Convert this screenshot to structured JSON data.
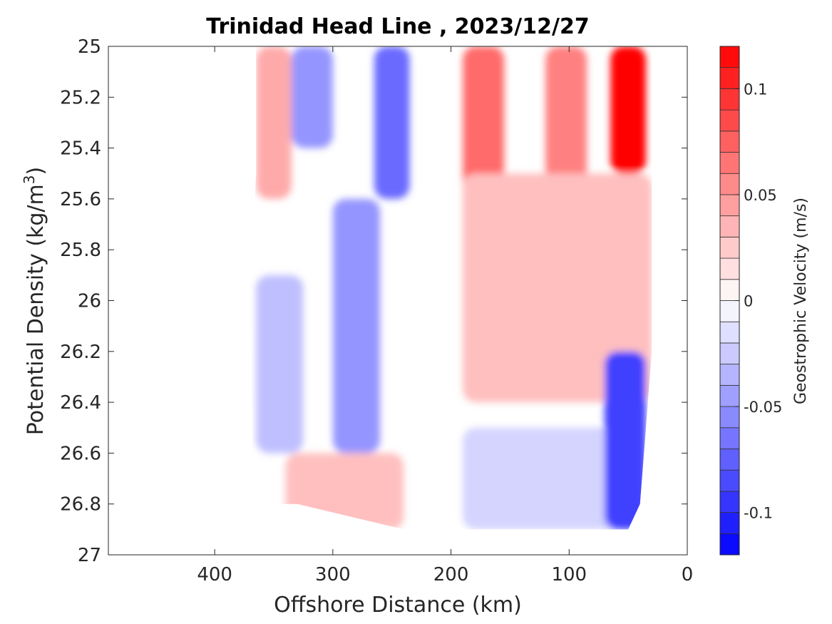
{
  "chart_data": {
    "type": "heatmap",
    "subtype": "filled-contour",
    "title": "Trinidad Head Line , 2023/12/27",
    "xlabel": "Offshore Distance (km)",
    "ylabel_main": "Potential Density (kg/m",
    "ylabel_sup": "3",
    "ylabel_tail": ")",
    "xlim": [
      490,
      0
    ],
    "x_reversed": true,
    "ylim": [
      25,
      27
    ],
    "y_reversed": true,
    "x_ticks": [
      400,
      300,
      200,
      100,
      0
    ],
    "x_tick_labels": [
      "400",
      "300",
      "200",
      "100",
      "0"
    ],
    "y_ticks": [
      25,
      25.2,
      25.4,
      25.6,
      25.8,
      26,
      26.2,
      26.4,
      26.6,
      26.8,
      27
    ],
    "y_tick_labels": [
      "25",
      "25.2",
      "25.4",
      "25.6",
      "25.8",
      "26",
      "26.2",
      "26.4",
      "26.6",
      "26.8",
      "27"
    ],
    "colorbar": {
      "label": "Geostrophic Velocity (m/s)",
      "range": [
        -0.12,
        0.12
      ],
      "tick_values": [
        0.1,
        0.05,
        0,
        -0.05,
        -0.1
      ],
      "tick_labels": [
        "0.1",
        "0.05",
        "0",
        "-0.05",
        "-0.1"
      ],
      "levels": [
        -0.12,
        -0.11,
        -0.1,
        -0.09,
        -0.08,
        -0.07,
        -0.06,
        -0.05,
        -0.04,
        -0.03,
        -0.02,
        -0.01,
        0,
        0.01,
        0.02,
        0.03,
        0.04,
        0.05,
        0.06,
        0.07,
        0.08,
        0.09,
        0.1,
        0.11,
        0.12
      ],
      "colormap": "blue-white-red",
      "negative_color": "#0000ff",
      "zero_color": "#ffffff",
      "positive_color": "#ff0000"
    },
    "features": [
      {
        "x": [
          365,
          335
        ],
        "y": [
          25,
          25.6
        ],
        "v": 0.04
      },
      {
        "x": [
          335,
          300
        ],
        "y": [
          25,
          25.4
        ],
        "v": -0.05
      },
      {
        "x": [
          265,
          235
        ],
        "y": [
          25,
          25.6
        ],
        "v": -0.07
      },
      {
        "x": [
          300,
          260
        ],
        "y": [
          25.6,
          26.6
        ],
        "v": -0.05
      },
      {
        "x": [
          365,
          325
        ],
        "y": [
          25.9,
          26.6
        ],
        "v": -0.03
      },
      {
        "x": [
          340,
          240
        ],
        "y": [
          26.6,
          26.9
        ],
        "v": 0.03
      },
      {
        "x": [
          190,
          155
        ],
        "y": [
          25,
          25.6
        ],
        "v": 0.07
      },
      {
        "x": [
          120,
          85
        ],
        "y": [
          25,
          25.6
        ],
        "v": 0.06
      },
      {
        "x": [
          65,
          35
        ],
        "y": [
          25,
          25.5
        ],
        "v": 0.12
      },
      {
        "x": [
          190,
          30
        ],
        "y": [
          25.5,
          26.4
        ],
        "v": 0.03
      },
      {
        "x": [
          190,
          50
        ],
        "y": [
          26.5,
          26.9
        ],
        "v": -0.02
      },
      {
        "x": [
          70,
          35
        ],
        "y": [
          26.2,
          26.9
        ],
        "v": -0.09
      }
    ]
  }
}
